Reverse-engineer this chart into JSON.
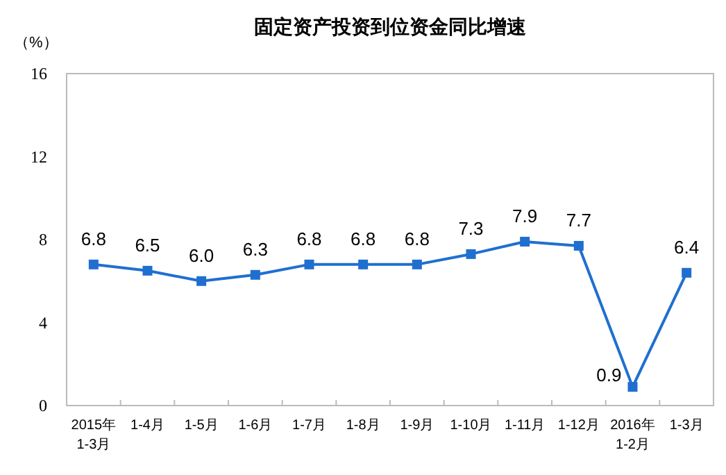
{
  "chart_data": {
    "type": "line",
    "title": "固定资产投资到位资金同比增速",
    "ylabel": "（%）",
    "categories": [
      "2015年\n1-3月",
      "1-4月",
      "1-5月",
      "1-6月",
      "1-7月",
      "1-8月",
      "1-9月",
      "1-10月",
      "1-11月",
      "1-12月",
      "2016年\n1-2月",
      "1-3月"
    ],
    "series": [
      {
        "color": "#1f6fd0",
        "values": [
          6.8,
          6.5,
          6.0,
          6.3,
          6.8,
          6.8,
          6.8,
          7.3,
          7.9,
          7.7,
          0.9,
          6.4
        ]
      }
    ],
    "value_labels": [
      "6.8",
      "6.5",
      "6.0",
      "6.3",
      "6.8",
      "6.8",
      "6.8",
      "7.3",
      "7.9",
      "7.7",
      "0.9",
      "6.4"
    ],
    "ylim": [
      0,
      16
    ],
    "yticks": [
      0,
      4,
      8,
      12,
      16
    ],
    "grid": false,
    "marker": "square",
    "line_style": "solid"
  }
}
